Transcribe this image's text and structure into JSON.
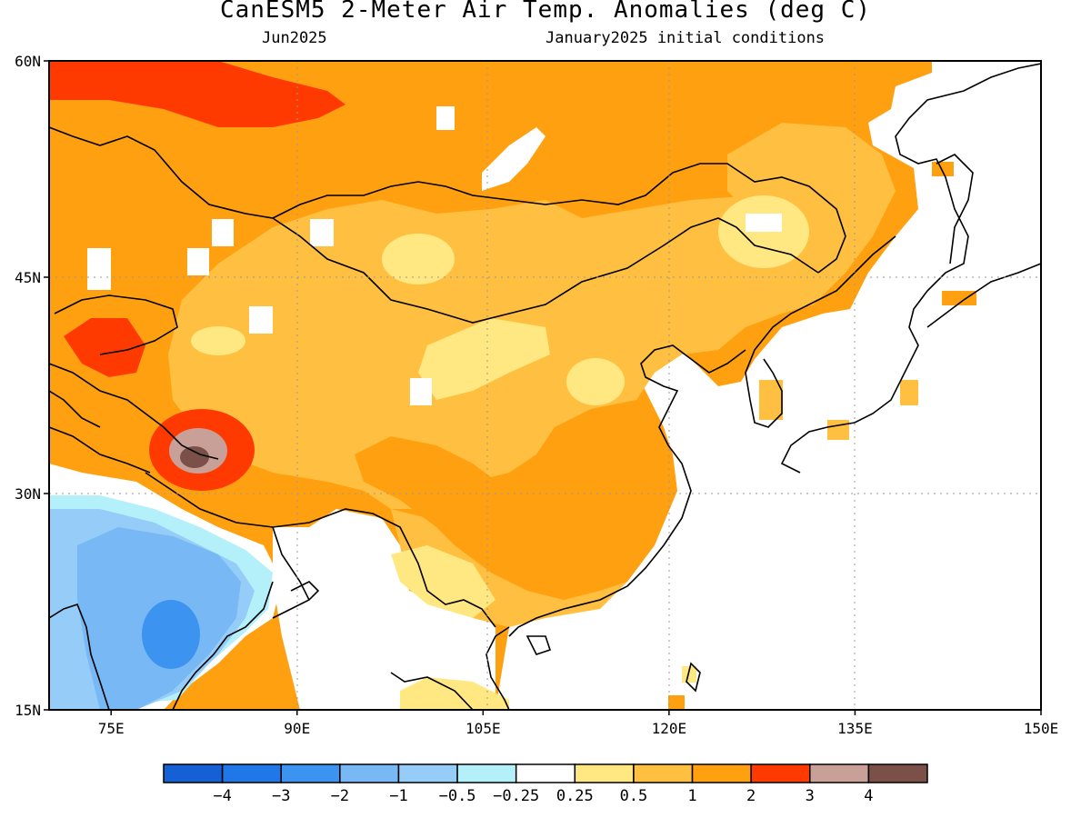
{
  "title": "CanESM5 2-Meter Air Temp. Anomalies (deg C)",
  "valid_month": "Jun2025",
  "init_note": "January2025 initial conditions",
  "map": {
    "lon_range": [
      70,
      150
    ],
    "lat_range": [
      15,
      60
    ],
    "lat_labels": [
      "60N",
      "45N",
      "30N",
      "15N"
    ],
    "lat_values": [
      60,
      45,
      30,
      15
    ],
    "lon_labels": [
      "75E",
      "90E",
      "105E",
      "120E",
      "135E",
      "150E"
    ],
    "lon_values": [
      75,
      90,
      105,
      120,
      135,
      150
    ],
    "gridlines": "dotted"
  },
  "legend": {
    "colors": [
      "#1560d4",
      "#1f77e8",
      "#3d94f0",
      "#78b8f5",
      "#96cdf8",
      "#b4f0fa",
      "#ffffff",
      "#ffe882",
      "#ffbf40",
      "#ffa010",
      "#ff3a00",
      "#c8a098",
      "#7a5048"
    ],
    "labels": [
      "−4",
      "−3",
      "−2",
      "−1",
      "−0.5",
      "−0.25",
      "0.25",
      "0.5",
      "1",
      "2",
      "3",
      "4"
    ]
  }
}
